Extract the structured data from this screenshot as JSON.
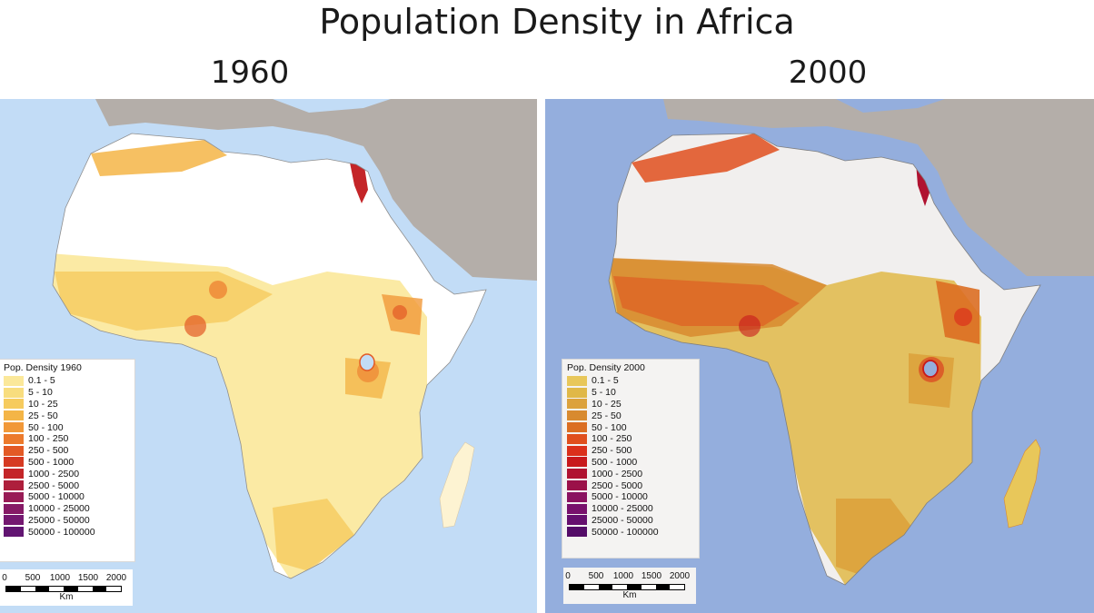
{
  "title": "Population Density in Africa",
  "panels": [
    {
      "year": "1960",
      "legend_title": "Pop. Density 1960",
      "scale_units": "Km",
      "scale_ticks": [
        "0",
        "500",
        "1000",
        "1500",
        "2000"
      ]
    },
    {
      "year": "2000",
      "legend_title": "Pop. Density 2000",
      "scale_units": "Km",
      "scale_ticks": [
        "0",
        "500",
        "1000",
        "1500",
        "2000"
      ]
    }
  ],
  "legend_classes": [
    "0.1 - 5",
    "5 - 10",
    "10 - 25",
    "25 - 50",
    "50 - 100",
    "100 - 250",
    "250 - 500",
    "500 - 1000",
    "1000 - 2500",
    "2500 - 5000",
    "5000 - 10000",
    "10000 - 25000",
    "25000 - 50000",
    "50000 - 100000"
  ],
  "legend_colors_1960": [
    "#fbe89a",
    "#f8dd7e",
    "#f6cb5e",
    "#f4b547",
    "#f19838",
    "#ec7a2c",
    "#e35a25",
    "#d63a22",
    "#c42528",
    "#ae1f3c",
    "#981c56",
    "#861a66",
    "#741870",
    "#621572"
  ],
  "legend_colors_2000": [
    "#e8c75a",
    "#e0b848",
    "#dca23c",
    "#d88a2f",
    "#db6e22",
    "#e04f1d",
    "#db301b",
    "#c8191c",
    "#b01230",
    "#9b1149",
    "#8a1260",
    "#78116c",
    "#650f6e",
    "#540c68"
  ],
  "colors": {
    "ocean_1960": "#c2dcf6",
    "ocean_2000": "#94aedd",
    "land_other": "#b4aea9",
    "africa_base_1960": "#ffffff",
    "africa_base_2000": "#f1efee"
  }
}
